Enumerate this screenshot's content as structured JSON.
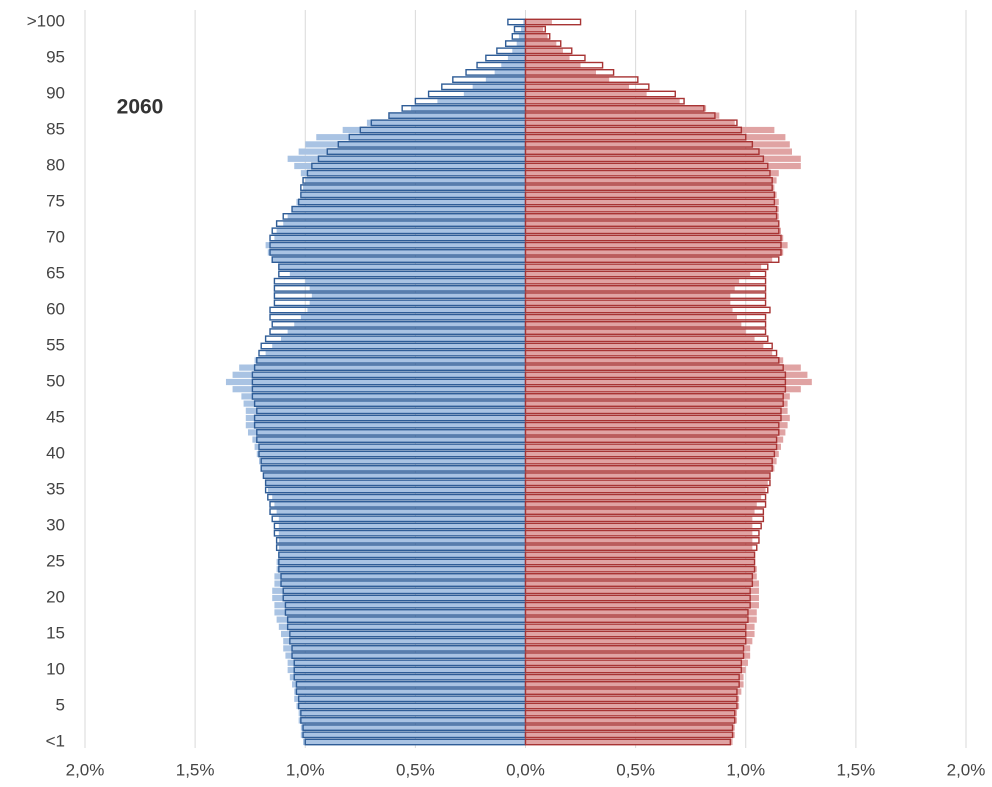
{
  "chart_data": {
    "type": "pyramid",
    "annotation": "2060",
    "categories": [
      "<1",
      null,
      null,
      null,
      null,
      "5",
      null,
      null,
      null,
      null,
      "10",
      null,
      null,
      null,
      null,
      "15",
      null,
      null,
      null,
      null,
      "20",
      null,
      null,
      null,
      null,
      "25",
      null,
      null,
      null,
      null,
      "30",
      null,
      null,
      null,
      null,
      "35",
      null,
      null,
      null,
      null,
      "40",
      null,
      null,
      null,
      null,
      "45",
      null,
      null,
      null,
      null,
      "50",
      null,
      null,
      null,
      null,
      "55",
      null,
      null,
      null,
      null,
      "60",
      null,
      null,
      null,
      null,
      "65",
      null,
      null,
      null,
      null,
      "70",
      null,
      null,
      null,
      null,
      "75",
      null,
      null,
      null,
      null,
      "80",
      null,
      null,
      null,
      null,
      "85",
      null,
      null,
      null,
      null,
      "90",
      null,
      null,
      null,
      null,
      "95",
      null,
      null,
      null,
      null,
      ">100"
    ],
    "xlim": [
      -2,
      2
    ],
    "xticks": [
      {
        "value": -2,
        "label": "2,0%"
      },
      {
        "value": -1.5,
        "label": "1,5%"
      },
      {
        "value": -1,
        "label": "1,0%"
      },
      {
        "value": -0.5,
        "label": "0,5%"
      },
      {
        "value": 0,
        "label": "0,0%"
      },
      {
        "value": 0.5,
        "label": "0,5%"
      },
      {
        "value": 1,
        "label": "1,0%"
      },
      {
        "value": 1.5,
        "label": "1,5%"
      },
      {
        "value": 2,
        "label": "2,0%"
      }
    ],
    "grid": true,
    "series": [
      {
        "color": "#a9c3e3",
        "style": "filled",
        "values": [
          -1.01,
          -1.02,
          -1.02,
          -1.03,
          -1.03,
          -1.04,
          -1.05,
          -1.05,
          -1.06,
          -1.07,
          -1.08,
          -1.08,
          -1.09,
          -1.1,
          -1.1,
          -1.11,
          -1.12,
          -1.13,
          -1.14,
          -1.14,
          -1.15,
          -1.15,
          -1.14,
          -1.14,
          -1.13,
          -1.13,
          -1.12,
          -1.12,
          -1.12,
          -1.12,
          -1.12,
          -1.12,
          -1.13,
          -1.14,
          -1.15,
          -1.17,
          -1.18,
          -1.19,
          -1.2,
          -1.21,
          -1.22,
          -1.23,
          -1.24,
          -1.26,
          -1.27,
          -1.27,
          -1.27,
          -1.28,
          -1.29,
          -1.33,
          -1.36,
          -1.33,
          -1.3,
          -1.23,
          -1.18,
          -1.15,
          -1.11,
          -1.08,
          -1.05,
          -1.02,
          -0.99,
          -0.98,
          -0.97,
          -0.98,
          -1.0,
          -1.07,
          -1.12,
          -1.15,
          -1.17,
          -1.18,
          -1.14,
          -1.13,
          -1.1,
          -1.08,
          -1.06,
          -1.04,
          -1.02,
          -1.01,
          -1.0,
          -1.02,
          -1.05,
          -1.08,
          -1.03,
          -1.0,
          -0.95,
          -0.83,
          -0.72,
          -0.62,
          -0.52,
          -0.4,
          -0.28,
          -0.24,
          -0.18,
          -0.14,
          -0.11,
          -0.08,
          -0.06,
          -0.04,
          -0.03,
          -0.02,
          -0.01
        ]
      },
      {
        "color": "#2f5d97",
        "style": "outline",
        "values": [
          -1.0,
          -1.01,
          -1.01,
          -1.02,
          -1.02,
          -1.03,
          -1.03,
          -1.04,
          -1.04,
          -1.05,
          -1.05,
          -1.05,
          -1.06,
          -1.06,
          -1.07,
          -1.07,
          -1.08,
          -1.08,
          -1.09,
          -1.09,
          -1.1,
          -1.1,
          -1.11,
          -1.11,
          -1.12,
          -1.12,
          -1.12,
          -1.13,
          -1.13,
          -1.14,
          -1.14,
          -1.15,
          -1.16,
          -1.16,
          -1.17,
          -1.18,
          -1.18,
          -1.19,
          -1.2,
          -1.2,
          -1.21,
          -1.21,
          -1.22,
          -1.22,
          -1.23,
          -1.23,
          -1.22,
          -1.23,
          -1.24,
          -1.24,
          -1.24,
          -1.24,
          -1.23,
          -1.22,
          -1.21,
          -1.2,
          -1.18,
          -1.16,
          -1.15,
          -1.16,
          -1.16,
          -1.14,
          -1.14,
          -1.14,
          -1.14,
          -1.12,
          -1.12,
          -1.15,
          -1.16,
          -1.16,
          -1.16,
          -1.15,
          -1.13,
          -1.1,
          -1.06,
          -1.03,
          -1.02,
          -1.02,
          -1.01,
          -0.99,
          -0.97,
          -0.94,
          -0.9,
          -0.85,
          -0.8,
          -0.75,
          -0.7,
          -0.62,
          -0.56,
          -0.5,
          -0.44,
          -0.38,
          -0.33,
          -0.27,
          -0.22,
          -0.18,
          -0.13,
          -0.09,
          -0.06,
          -0.05,
          -0.08
        ]
      },
      {
        "color": "#e0a3a3",
        "style": "filled",
        "values": [
          0.94,
          0.95,
          0.95,
          0.96,
          0.96,
          0.97,
          0.97,
          0.98,
          0.99,
          0.99,
          1.0,
          1.01,
          1.02,
          1.02,
          1.03,
          1.04,
          1.04,
          1.05,
          1.05,
          1.06,
          1.06,
          1.06,
          1.06,
          1.05,
          1.05,
          1.04,
          1.04,
          1.03,
          1.03,
          1.03,
          1.03,
          1.03,
          1.04,
          1.05,
          1.07,
          1.09,
          1.1,
          1.11,
          1.13,
          1.14,
          1.15,
          1.16,
          1.17,
          1.18,
          1.19,
          1.2,
          1.19,
          1.19,
          1.2,
          1.25,
          1.3,
          1.28,
          1.25,
          1.17,
          1.12,
          1.08,
          1.04,
          1.0,
          0.98,
          0.96,
          0.94,
          0.93,
          0.93,
          0.95,
          0.97,
          1.02,
          1.07,
          1.12,
          1.17,
          1.19,
          1.17,
          1.16,
          1.15,
          1.15,
          1.15,
          1.15,
          1.14,
          1.13,
          1.14,
          1.15,
          1.25,
          1.25,
          1.21,
          1.2,
          1.18,
          1.13,
          0.95,
          0.88,
          0.82,
          0.7,
          0.55,
          0.47,
          0.38,
          0.32,
          0.25,
          0.2,
          0.17,
          0.14,
          0.1,
          0.08,
          0.12
        ]
      },
      {
        "color": "#a83434",
        "style": "outline",
        "values": [
          0.93,
          0.94,
          0.94,
          0.95,
          0.95,
          0.96,
          0.96,
          0.96,
          0.97,
          0.97,
          0.98,
          0.98,
          0.99,
          0.99,
          1.0,
          1.0,
          1.0,
          1.01,
          1.01,
          1.02,
          1.02,
          1.02,
          1.03,
          1.03,
          1.04,
          1.04,
          1.04,
          1.05,
          1.06,
          1.06,
          1.07,
          1.08,
          1.08,
          1.09,
          1.09,
          1.1,
          1.11,
          1.11,
          1.12,
          1.12,
          1.13,
          1.14,
          1.14,
          1.15,
          1.15,
          1.16,
          1.16,
          1.17,
          1.17,
          1.18,
          1.18,
          1.18,
          1.17,
          1.15,
          1.14,
          1.12,
          1.1,
          1.09,
          1.09,
          1.09,
          1.11,
          1.09,
          1.09,
          1.09,
          1.09,
          1.09,
          1.1,
          1.15,
          1.16,
          1.16,
          1.16,
          1.15,
          1.15,
          1.14,
          1.14,
          1.13,
          1.13,
          1.12,
          1.12,
          1.11,
          1.1,
          1.08,
          1.06,
          1.03,
          1.0,
          0.98,
          0.96,
          0.86,
          0.81,
          0.72,
          0.68,
          0.56,
          0.51,
          0.4,
          0.35,
          0.27,
          0.21,
          0.16,
          0.11,
          0.09,
          0.25
        ]
      }
    ]
  }
}
